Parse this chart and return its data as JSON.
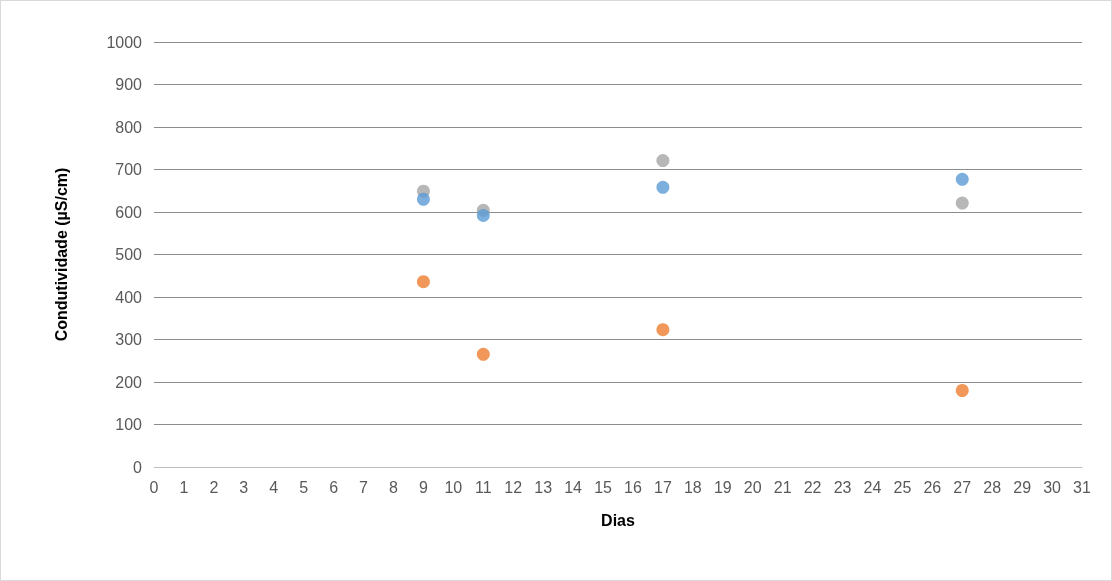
{
  "chart_data": {
    "type": "scatter",
    "xlabel": "Dias",
    "ylabel": "Condutividade (µS/cm)",
    "x": [
      9,
      11,
      17,
      27
    ],
    "series": [
      {
        "color": "#5b9bd5",
        "values": [
          630,
          592,
          658,
          677
        ]
      },
      {
        "color": "#ed7d31",
        "values": [
          436,
          265,
          323,
          180
        ]
      },
      {
        "color": "#a5a5a5",
        "values": [
          649,
          604,
          721,
          621
        ]
      }
    ],
    "xlim": [
      0,
      31
    ],
    "xticks": [
      0,
      1,
      2,
      3,
      4,
      5,
      6,
      7,
      8,
      9,
      10,
      11,
      12,
      13,
      14,
      15,
      16,
      17,
      18,
      19,
      20,
      21,
      22,
      23,
      24,
      25,
      26,
      27,
      28,
      29,
      30,
      31
    ],
    "ylim": [
      0,
      1000
    ],
    "yticks": [
      0,
      100,
      200,
      300,
      400,
      500,
      600,
      700,
      800,
      900,
      1000
    ],
    "grid": "y",
    "marker": "circle"
  }
}
